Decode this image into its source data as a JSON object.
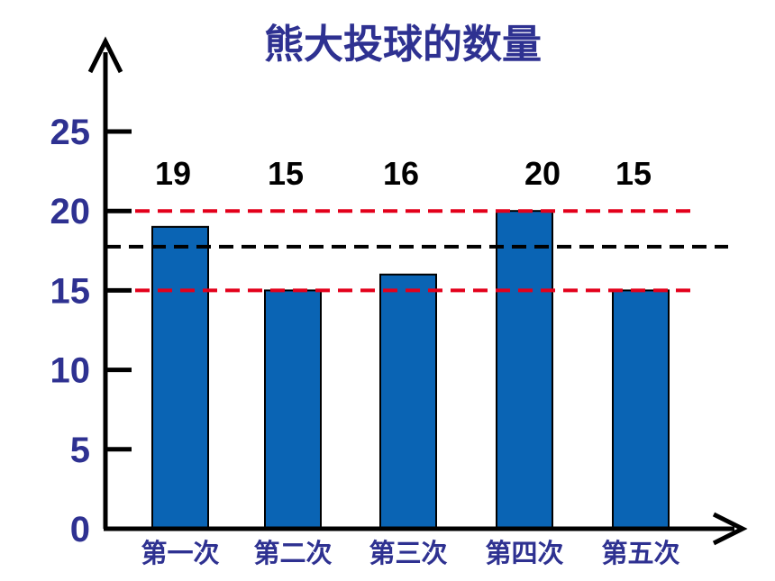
{
  "chart_data": {
    "type": "bar",
    "title": "熊大投球的数量",
    "categories": [
      "第一次",
      "第二次",
      "第三次",
      "第四次",
      "第五次"
    ],
    "values": [
      19,
      15,
      16,
      20,
      15
    ],
    "data_labels": [
      "19",
      "15",
      "16",
      "20",
      "15"
    ],
    "y_ticks": [
      0,
      5,
      10,
      15,
      20,
      25
    ],
    "ylim": [
      0,
      25
    ],
    "xlabel": "",
    "ylabel": "",
    "grid": false,
    "reference_lines": [
      {
        "value": 20,
        "color": "#e3001b",
        "style": "dashed"
      },
      {
        "value": 17.75,
        "color": "#000000",
        "style": "dashed"
      },
      {
        "value": 15,
        "color": "#e3001b",
        "style": "dashed"
      }
    ],
    "colors": {
      "bar": "#0a64b4",
      "bar_edge": "#000000",
      "text": "#2e3191",
      "axis": "#000000"
    }
  }
}
